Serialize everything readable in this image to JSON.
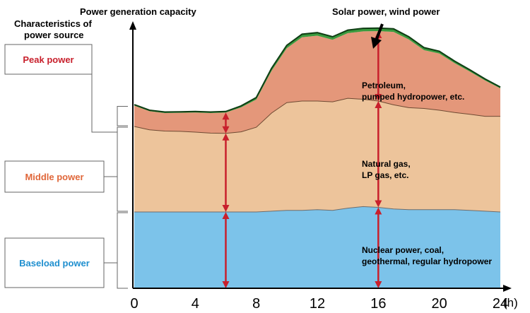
{
  "chart_data": {
    "type": "area",
    "stacked": true,
    "ylabel": "Power generation capacity",
    "xlabel": "(h)",
    "x_ticks": [
      0,
      4,
      8,
      12,
      16,
      20,
      24
    ],
    "xlim": [
      0,
      26
    ],
    "ylim": [
      0,
      100
    ],
    "x": [
      0,
      1,
      2,
      3,
      4,
      5,
      6,
      7,
      8,
      9,
      10,
      11,
      12,
      13,
      14,
      15,
      16,
      17,
      18,
      19,
      20,
      21,
      22,
      23,
      24
    ],
    "series": [
      {
        "values": [
          30,
          30,
          30,
          30,
          30,
          30,
          30,
          30,
          30,
          30.3,
          30.6,
          30.6,
          30.9,
          30.6,
          31.5,
          32.1,
          31.8,
          31.2,
          30.9,
          30.9,
          30.9,
          30.9,
          30.6,
          30.3,
          30
        ],
        "color": "#7cc3ea"
      },
      {
        "values": [
          33.6,
          32.3,
          31.8,
          31.7,
          31.4,
          31,
          30.9,
          31.5,
          33.3,
          38.6,
          42.4,
          43,
          42.7,
          42.7,
          43.2,
          42.2,
          41.8,
          40.9,
          40.1,
          39.8,
          39.1,
          38.2,
          37.8,
          37.3,
          37.6
        ],
        "color": "#edc49b"
      },
      {
        "values": [
          8.2,
          7.3,
          7.1,
          7.3,
          7.7,
          7.9,
          8.2,
          9.6,
          10.9,
          16.6,
          21.4,
          25.1,
          25.7,
          24.4,
          25.6,
          26.7,
          27.5,
          28.7,
          26.8,
          22.9,
          22.3,
          19.4,
          16.8,
          14.1,
          11
        ],
        "color": "#e4977a"
      },
      {
        "values": [
          0.4,
          0.4,
          0.4,
          0.4,
          0.4,
          0.4,
          0.4,
          0.6,
          0.8,
          1,
          1.1,
          1.2,
          1.2,
          1.2,
          1.2,
          1.2,
          1.2,
          1.2,
          1.1,
          1,
          0.9,
          0.8,
          0.7,
          0.6,
          0.5
        ],
        "color": "#3a9a3e"
      }
    ],
    "brackets": [
      {
        "label": "Peak power",
        "color": "#c8202c"
      },
      {
        "label": "Middle power",
        "color": "#e0673a"
      },
      {
        "label": "Baseload power",
        "color": "#1f8fcf"
      }
    ],
    "annotations": {
      "source_header": [
        "Characteristics of",
        "power source"
      ],
      "top_note": "Solar power, wind power",
      "peak_sources": [
        "Petroleum,",
        "pumped hydropower, etc."
      ],
      "middle_sources": [
        "Natural gas,",
        "LP gas, etc."
      ],
      "base_sources": [
        "Nuclear power, coal,",
        "geothermal, regular hydropower"
      ]
    }
  }
}
